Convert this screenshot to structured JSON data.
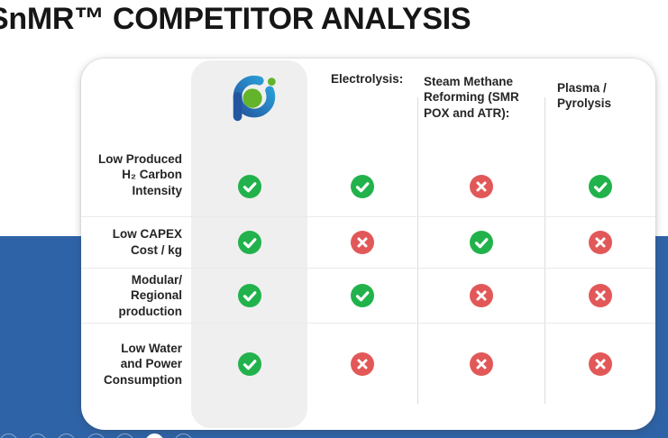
{
  "title": "SnMR™ COMPETITOR ANALYSIS",
  "logo": {
    "icon": "p-orbit-company-logo",
    "ring_dark": "#2456a0",
    "ring_light": "#2ba6dd",
    "dot_green": "#63b32b"
  },
  "colors": {
    "check_green": "#22b24c",
    "cross_red": "#e25858",
    "accent_blue": "#2e63a7",
    "highlight_gray": "#f0efef"
  },
  "table": {
    "columns": [
      {
        "label": ""
      },
      {
        "label": "Electrolysis:"
      },
      {
        "label": "Steam Methane\nReforming (SMR\nPOX and ATR):"
      },
      {
        "label": "Plasma /\nPyrolysis"
      }
    ],
    "rows": [
      {
        "label": "Low Produced\nH₂ Carbon\nIntensity",
        "values": [
          "check",
          "check",
          "cross",
          "check"
        ]
      },
      {
        "label": "Low CAPEX\nCost / kg",
        "values": [
          "check",
          "cross",
          "check",
          "cross"
        ]
      },
      {
        "label": "Modular/\nRegional\nproduction",
        "values": [
          "check",
          "check",
          "cross",
          "cross"
        ]
      },
      {
        "label": "Low Water\nand Power\nConsumption",
        "values": [
          "check",
          "cross",
          "cross",
          "cross"
        ]
      }
    ]
  },
  "chart_data": {
    "type": "table",
    "title": "SnMR™ COMPETITOR ANALYSIS",
    "columns": [
      "SnMR (company logo)",
      "Electrolysis",
      "Steam Methane Reforming (SMR POX and ATR)",
      "Plasma / Pyrolysis"
    ],
    "row_labels": [
      "Low Produced H₂ Carbon Intensity",
      "Low CAPEX Cost / kg",
      "Modular/ Regional production",
      "Low Water and Power Consumption"
    ],
    "values": [
      [
        "yes",
        "yes",
        "no",
        "yes"
      ],
      [
        "yes",
        "no",
        "yes",
        "no"
      ],
      [
        "yes",
        "yes",
        "no",
        "no"
      ],
      [
        "yes",
        "no",
        "no",
        "no"
      ]
    ],
    "legend": {
      "yes": "green check circle",
      "no": "red cross circle"
    }
  },
  "footer": {
    "dot_count": 7,
    "active_index": 5
  }
}
